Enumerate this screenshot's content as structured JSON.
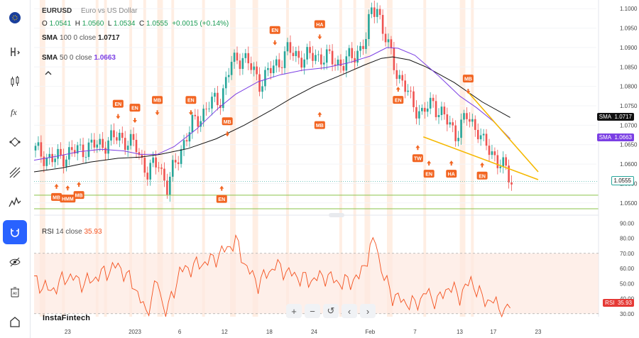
{
  "symbol": "EURUSD",
  "description": "Euro vs US Dollar",
  "ohlc": {
    "o_label": "O",
    "o": "1.0541",
    "h_label": "H",
    "h": "1.0560",
    "l_label": "L",
    "l": "1.0534",
    "c_label": "C",
    "c": "1.0555",
    "change": "+0.0015 (+0.14%)"
  },
  "sma100": {
    "label": "SMA",
    "params": "100 0 close",
    "value": "1.0717",
    "color": "#111111"
  },
  "sma50": {
    "label": "SMA",
    "params": "50 0 close",
    "value": "1.0663",
    "color": "#7b3fe4"
  },
  "rsi": {
    "label": "RSI",
    "params": "14 close",
    "value": "35.93",
    "color": "#f4511e"
  },
  "brand": "InstaFintech",
  "price_badge": "1.0555",
  "sma100_badge": {
    "label": "SMA",
    "value": "1.0717"
  },
  "sma50_badge": {
    "label": "SMA",
    "value": "1.0663"
  },
  "rsi_badge": {
    "label": "RSI",
    "value": "35.93"
  },
  "sidebar_icons": [
    "flag-icon",
    "candle-h-icon",
    "candles-icon",
    "fx-icon",
    "nodes-icon",
    "pitchfork-icon",
    "pattern-icon",
    "magnet-icon",
    "eye-off-icon",
    "trash-lock-icon",
    "home-icon"
  ],
  "nav_buttons": [
    "+",
    "−",
    "↺",
    "‹",
    "›"
  ],
  "chart_data": [
    {
      "type": "line",
      "title": "EURUSD",
      "subtitle": "Euro vs US Dollar",
      "y_ticks": [
        "1.1000",
        "1.0950",
        "1.0900",
        "1.0850",
        "1.0800",
        "1.0750",
        "1.0700",
        "1.0650",
        "1.0600",
        "1.0550",
        "1.0500"
      ],
      "ylim": [
        1.0485,
        1.1015
      ],
      "x_ticks": [
        "23",
        "2023",
        "6",
        "12",
        "18",
        "24",
        "Feb",
        "7",
        "13",
        "17",
        "23"
      ],
      "bars": 140,
      "series": [
        {
          "name": "SMA 100",
          "color": "#111111",
          "points": [
            [
              0,
              1.058
            ],
            [
              10,
              1.059
            ],
            [
              20,
              1.0605
            ],
            [
              30,
              1.0615
            ],
            [
              38,
              1.0618
            ],
            [
              45,
              1.0625
            ],
            [
              55,
              1.064
            ],
            [
              65,
              1.0665
            ],
            [
              75,
              1.07
            ],
            [
              85,
              1.074
            ],
            [
              92,
              1.077
            ],
            [
              100,
              1.08
            ],
            [
              110,
              1.083
            ],
            [
              118,
              1.0855
            ],
            [
              124,
              1.0872
            ],
            [
              128,
              1.0876
            ],
            [
              134,
              1.0868
            ],
            [
              140,
              1.085
            ],
            [
              150,
              1.081
            ],
            [
              160,
              1.076
            ],
            [
              170,
              1.072
            ]
          ]
        },
        {
          "name": "SMA 50",
          "color": "#7b3fe4",
          "points": [
            [
              0,
              1.061
            ],
            [
              8,
              1.062
            ],
            [
              16,
              1.0632
            ],
            [
              24,
              1.0638
            ],
            [
              32,
              1.0634
            ],
            [
              38,
              1.0625
            ],
            [
              44,
              1.0625
            ],
            [
              50,
              1.0645
            ],
            [
              58,
              1.069
            ],
            [
              66,
              1.0745
            ],
            [
              72,
              1.078
            ],
            [
              80,
              1.0812
            ],
            [
              88,
              1.083
            ],
            [
              96,
              1.0842
            ],
            [
              104,
              1.0848
            ],
            [
              112,
              1.086
            ],
            [
              120,
              1.0878
            ],
            [
              126,
              1.09
            ],
            [
              130,
              1.0898
            ],
            [
              136,
              1.088
            ],
            [
              144,
              1.083
            ],
            [
              152,
              1.0775
            ],
            [
              158,
              1.0745
            ],
            [
              164,
              1.071
            ],
            [
              170,
              1.0665
            ]
          ]
        },
        {
          "name": "Price",
          "color": "#26a69a",
          "points": [
            [
              0,
              1.0635
            ],
            [
              6,
              1.061
            ],
            [
              12,
              1.0628
            ],
            [
              18,
              1.0642
            ],
            [
              24,
              1.0652
            ],
            [
              30,
              1.0672
            ],
            [
              36,
              1.0642
            ],
            [
              40,
              1.0578
            ],
            [
              44,
              1.0605
            ],
            [
              47,
              1.054
            ],
            [
              52,
              1.0642
            ],
            [
              56,
              1.07
            ],
            [
              62,
              1.0752
            ],
            [
              66,
              1.077
            ],
            [
              70,
              1.0858
            ],
            [
              74,
              1.088
            ],
            [
              80,
              1.0812
            ],
            [
              84,
              1.084
            ],
            [
              90,
              1.089
            ],
            [
              96,
              1.0872
            ],
            [
              100,
              1.088
            ],
            [
              106,
              1.0868
            ],
            [
              110,
              1.0858
            ],
            [
              114,
              1.0882
            ],
            [
              118,
              1.092
            ],
            [
              120,
              1.0995
            ],
            [
              122,
              1.101
            ],
            [
              124,
              1.094
            ],
            [
              126,
              1.09
            ],
            [
              130,
              1.0822
            ],
            [
              134,
              1.0765
            ],
            [
              138,
              1.0728
            ],
            [
              142,
              1.076
            ],
            [
              146,
              1.0718
            ],
            [
              150,
              1.068
            ],
            [
              154,
              1.072
            ],
            [
              158,
              1.069
            ],
            [
              160,
              1.065
            ],
            [
              164,
              1.0622
            ],
            [
              168,
              1.058
            ],
            [
              170,
              1.0555
            ]
          ]
        }
      ],
      "trendlines": [
        {
          "from": [
            139,
            1.067
          ],
          "to": [
            180,
            1.056
          ]
        },
        {
          "from": [
            155,
            1.0785
          ],
          "to": [
            180,
            1.058
          ]
        }
      ],
      "horizontal_levels": [
        1.052,
        1.0485
      ],
      "current_price": 1.0555,
      "patterns": [
        {
          "text": "MB",
          "bar": 8,
          "price": 1.054,
          "arrow": "up"
        },
        {
          "text": "HMM",
          "bar": 12,
          "price": 1.0536,
          "arrow": "up"
        },
        {
          "text": "MB",
          "bar": 16,
          "price": 1.0545,
          "arrow": "up"
        },
        {
          "text": "EN",
          "bar": 30,
          "price": 1.0725,
          "arrow": "down"
        },
        {
          "text": "EN",
          "bar": 36,
          "price": 1.0715,
          "arrow": "down"
        },
        {
          "text": "MB",
          "bar": 44,
          "price": 1.0735,
          "arrow": "down"
        },
        {
          "text": "EN",
          "bar": 56,
          "price": 1.0735,
          "arrow": "down"
        },
        {
          "text": "EN",
          "bar": 67,
          "price": 1.0535,
          "arrow": "up"
        },
        {
          "text": "MB",
          "bar": 69,
          "price": 1.068,
          "arrow": "down"
        },
        {
          "text": "EN",
          "bar": 86,
          "price": 1.0915,
          "arrow": "down"
        },
        {
          "text": "HA",
          "bar": 102,
          "price": 1.093,
          "arrow": "down"
        },
        {
          "text": "MB",
          "bar": 102,
          "price": 1.0725,
          "arrow": "up"
        },
        {
          "text": "EN",
          "bar": 130,
          "price": 1.079,
          "arrow": "up"
        },
        {
          "text": "TW",
          "bar": 137,
          "price": 1.064,
          "arrow": "up"
        },
        {
          "text": "EN",
          "bar": 141,
          "price": 1.06,
          "arrow": "up"
        },
        {
          "text": "HA",
          "bar": 149,
          "price": 1.06,
          "arrow": "up"
        },
        {
          "text": "MB",
          "bar": 155,
          "price": 1.079,
          "arrow": "down"
        },
        {
          "text": "EN",
          "bar": 160,
          "price": 1.0595,
          "arrow": "up"
        }
      ]
    },
    {
      "type": "line",
      "title": "RSI 14 close",
      "y_ticks": [
        "90.00",
        "80.00",
        "70.00",
        "60.00",
        "50.00",
        "40.00",
        "30.00"
      ],
      "ylim": [
        28,
        92
      ],
      "overbought": 70,
      "oversold": 30,
      "series": [
        {
          "name": "RSI",
          "color": "#f4511e",
          "points": [
            [
              0,
              52
            ],
            [
              6,
              45
            ],
            [
              12,
              55
            ],
            [
              18,
              50
            ],
            [
              24,
              56
            ],
            [
              30,
              62
            ],
            [
              36,
              48
            ],
            [
              40,
              30
            ],
            [
              44,
              52
            ],
            [
              47,
              28
            ],
            [
              52,
              58
            ],
            [
              58,
              62
            ],
            [
              64,
              66
            ],
            [
              68,
              72
            ],
            [
              72,
              78
            ],
            [
              76,
              60
            ],
            [
              80,
              50
            ],
            [
              86,
              62
            ],
            [
              92,
              56
            ],
            [
              98,
              52
            ],
            [
              104,
              55
            ],
            [
              110,
              50
            ],
            [
              116,
              54
            ],
            [
              120,
              72
            ],
            [
              122,
              80
            ],
            [
              124,
              58
            ],
            [
              128,
              42
            ],
            [
              132,
              38
            ],
            [
              136,
              36
            ],
            [
              140,
              44
            ],
            [
              144,
              38
            ],
            [
              148,
              48
            ],
            [
              152,
              42
            ],
            [
              156,
              52
            ],
            [
              160,
              40
            ],
            [
              164,
              38
            ],
            [
              168,
              30
            ],
            [
              170,
              36
            ]
          ]
        }
      ]
    }
  ]
}
